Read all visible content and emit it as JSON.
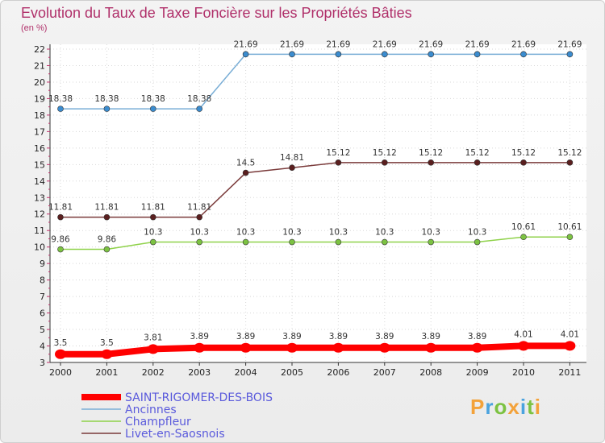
{
  "title": "Evolution du Taux de Taxe Foncière sur les Propriétés Bâties",
  "unit_label": "(en %)",
  "logo": {
    "text": "Proxiti",
    "colors": [
      "#f3a23a",
      "#4aa3df",
      "#7cc242",
      "#f3a23a",
      "#4aa3df",
      "#7cc242",
      "#f3a23a"
    ]
  },
  "chart_data": {
    "type": "line",
    "title": "Evolution du Taux de Taxe Foncière sur les Propriétés Bâties",
    "xlabel": "",
    "ylabel": "(en %)",
    "ylim": [
      3,
      22
    ],
    "y_ticks": [
      3,
      4,
      5,
      6,
      7,
      8,
      9,
      10,
      11,
      12,
      13,
      14,
      15,
      16,
      17,
      18,
      19,
      20,
      21,
      22
    ],
    "categories": [
      "2000",
      "2001",
      "2002",
      "2003",
      "2004",
      "2005",
      "2006",
      "2007",
      "2008",
      "2009",
      "2010",
      "2011"
    ],
    "series": [
      {
        "name": "Ancinnes",
        "color": "#7aaed6",
        "marker": "#3b8ccf",
        "thick": false,
        "values": [
          18.38,
          18.38,
          18.38,
          18.38,
          21.69,
          21.69,
          21.69,
          21.69,
          21.69,
          21.69,
          21.69,
          21.69
        ],
        "labels": [
          "18.38",
          "18.38",
          "18.38",
          "18.38",
          "21.69",
          "21.69",
          "21.69",
          "21.69",
          "21.69",
          "21.69",
          "21.69",
          "21.69"
        ]
      },
      {
        "name": "Livet-en-Saosnois",
        "color": "#7a3a3a",
        "marker": "#5a1f1f",
        "thick": false,
        "values": [
          11.81,
          11.81,
          11.81,
          11.81,
          14.5,
          14.81,
          15.12,
          15.12,
          15.12,
          15.12,
          15.12,
          15.12
        ],
        "labels": [
          "11.81",
          "11.81",
          "11.81",
          "11.81",
          "14.5",
          "14.81",
          "15.12",
          "15.12",
          "15.12",
          "15.12",
          "15.12",
          "15.12"
        ]
      },
      {
        "name": "Champfleur",
        "color": "#8fd24a",
        "marker": "#7cc242",
        "thick": false,
        "values": [
          9.86,
          9.86,
          10.3,
          10.3,
          10.3,
          10.3,
          10.3,
          10.3,
          10.3,
          10.3,
          10.61,
          10.61
        ],
        "labels": [
          "9.86",
          "9.86",
          "10.3",
          "10.3",
          "10.3",
          "10.3",
          "10.3",
          "10.3",
          "10.3",
          "10.3",
          "10.61",
          "10.61"
        ]
      },
      {
        "name": "SAINT-RIGOMER-DES-BOIS",
        "color": "#ff0000",
        "marker": "#ff0000",
        "thick": true,
        "values": [
          3.5,
          3.5,
          3.81,
          3.89,
          3.89,
          3.89,
          3.89,
          3.89,
          3.89,
          3.89,
          4.01,
          4.01
        ],
        "labels": [
          "3.5",
          "3.5",
          "3.81",
          "3.89",
          "3.89",
          "3.89",
          "3.89",
          "3.89",
          "3.89",
          "3.89",
          "4.01",
          "4.01"
        ]
      }
    ],
    "legend": [
      "SAINT-RIGOMER-DES-BOIS",
      "Ancinnes",
      "Champfleur",
      "Livet-en-Saosnois"
    ],
    "legend_position": "bottom-left"
  }
}
